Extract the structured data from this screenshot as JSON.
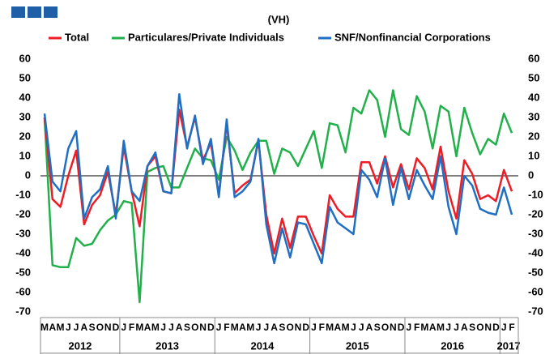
{
  "chart_data": {
    "type": "line",
    "subtitle": "(VH)",
    "categories": [
      "M",
      "A",
      "M",
      "J",
      "J",
      "A",
      "S",
      "O",
      "N",
      "D",
      "J",
      "F",
      "M",
      "A",
      "M",
      "J",
      "J",
      "A",
      "S",
      "O",
      "N",
      "D",
      "J",
      "F",
      "M",
      "A",
      "M",
      "J",
      "J",
      "A",
      "S",
      "O",
      "N",
      "D",
      "J",
      "F",
      "M",
      "A",
      "M",
      "J",
      "J",
      "A",
      "S",
      "O",
      "N",
      "D",
      "J",
      "F",
      "M",
      "A",
      "M",
      "J",
      "J",
      "A",
      "S",
      "O",
      "N",
      "D",
      "J",
      "F"
    ],
    "years": [
      "2012",
      "2013",
      "2014",
      "2015",
      "2016",
      "2017"
    ],
    "series": [
      {
        "name": "Total",
        "color": "#ee1c25",
        "values": [
          30,
          -12,
          -16,
          0,
          13,
          -25,
          -15,
          -10,
          2,
          -20,
          15,
          -8,
          -26,
          5,
          10,
          -8,
          -9,
          34,
          15,
          30,
          8,
          17,
          -10,
          27,
          -9,
          -5,
          -2,
          18,
          -20,
          -40,
          -22,
          -37,
          -21,
          -21,
          -31,
          -40,
          -10,
          -17,
          -21,
          -21,
          7,
          7,
          -4,
          10,
          -6,
          6,
          -7,
          9,
          4,
          -7,
          15,
          -8,
          -22,
          8,
          1,
          -12,
          -10,
          -13,
          3,
          -8
        ]
      },
      {
        "name": "Particulares/Private Individuals",
        "color": "#22b04b",
        "values": [
          30,
          -46,
          -47,
          -47,
          -32,
          -36,
          -35,
          -28,
          -23,
          -20,
          -13,
          -14,
          -65,
          2,
          4,
          5,
          -6,
          -6,
          4,
          14,
          9,
          8,
          -2,
          20,
          13,
          3,
          12,
          18,
          18,
          1,
          14,
          12,
          5,
          14,
          23,
          4,
          27,
          26,
          12,
          35,
          32,
          44,
          39,
          20,
          44,
          24,
          21,
          41,
          33,
          14,
          36,
          33,
          10,
          35,
          22,
          11,
          19,
          16,
          32,
          22
        ]
      },
      {
        "name": "SNF/Nonfinancial Corporations",
        "color": "#1f6fc4",
        "values": [
          32,
          -3,
          -8,
          14,
          23,
          -22,
          -11,
          -7,
          5,
          -22,
          18,
          -8,
          -13,
          5,
          12,
          -8,
          -9,
          42,
          14,
          31,
          6,
          19,
          -11,
          29,
          -11,
          -8,
          -3,
          19,
          -25,
          -45,
          -27,
          -42,
          -24,
          -25,
          -35,
          -45,
          -16,
          -24,
          -27,
          -30,
          3,
          -2,
          -11,
          9,
          -15,
          4,
          -12,
          3,
          -5,
          -12,
          10,
          -16,
          -30,
          0,
          -5,
          -17,
          -19,
          -20,
          -6,
          -20
        ]
      }
    ],
    "ylim": [
      -70,
      60
    ],
    "yticks": [
      -70,
      -60,
      -50,
      -40,
      -30,
      -20,
      -10,
      0,
      10,
      20,
      30,
      40,
      50,
      60
    ],
    "y2lim": [
      -70,
      60
    ],
    "y2ticks": [
      -70,
      -60,
      -50,
      -40,
      -30,
      -20,
      -10,
      0,
      10,
      20,
      30,
      40,
      50,
      60
    ]
  }
}
